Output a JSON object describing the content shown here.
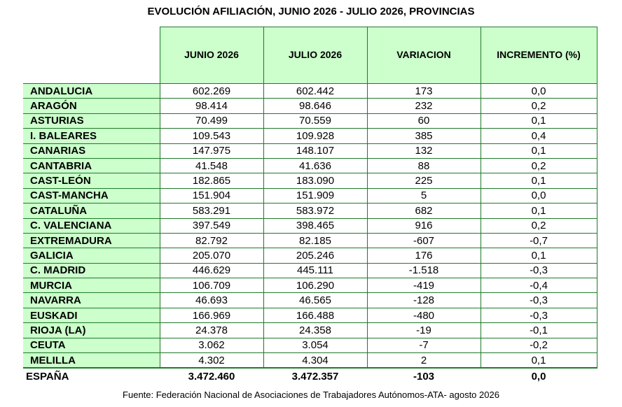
{
  "title": "EVOLUCIÓN AFILIACIÓN, JUNIO 2026 - JULIO 2026, PROVINCIAS",
  "headers": [
    "JUNIO 2026",
    "JULIO 2026",
    "VARIACION",
    "INCREMENTO (%)"
  ],
  "rows": [
    {
      "name": "ANDALUCIA",
      "junio": "602.269",
      "julio": "602.442",
      "variacion": "173",
      "incremento": "0,0"
    },
    {
      "name": "ARAGÓN",
      "junio": "98.414",
      "julio": "98.646",
      "variacion": "232",
      "incremento": "0,2"
    },
    {
      "name": "ASTURIAS",
      "junio": "70.499",
      "julio": "70.559",
      "variacion": "60",
      "incremento": "0,1"
    },
    {
      "name": "I. BALEARES",
      "junio": "109.543",
      "julio": "109.928",
      "variacion": "385",
      "incremento": "0,4"
    },
    {
      "name": "CANARIAS",
      "junio": "147.975",
      "julio": "148.107",
      "variacion": "132",
      "incremento": "0,1"
    },
    {
      "name": "CANTABRIA",
      "junio": "41.548",
      "julio": "41.636",
      "variacion": "88",
      "incremento": "0,2"
    },
    {
      "name": "CAST-LEÓN",
      "junio": "182.865",
      "julio": "183.090",
      "variacion": "225",
      "incremento": "0,1"
    },
    {
      "name": "CAST-MANCHA",
      "junio": "151.904",
      "julio": "151.909",
      "variacion": "5",
      "incremento": "0,0"
    },
    {
      "name": "CATALUÑA",
      "junio": "583.291",
      "julio": "583.972",
      "variacion": "682",
      "incremento": "0,1"
    },
    {
      "name": "C. VALENCIANA",
      "junio": "397.549",
      "julio": "398.465",
      "variacion": "916",
      "incremento": "0,2"
    },
    {
      "name": "EXTREMADURA",
      "junio": "82.792",
      "julio": "82.185",
      "variacion": "-607",
      "incremento": "-0,7"
    },
    {
      "name": "GALICIA",
      "junio": "205.070",
      "julio": "205.246",
      "variacion": "176",
      "incremento": "0,1"
    },
    {
      "name": "C. MADRID",
      "junio": "446.629",
      "julio": "445.111",
      "variacion": "-1.518",
      "incremento": "-0,3"
    },
    {
      "name": "MURCIA",
      "junio": "106.709",
      "julio": "106.290",
      "variacion": "-419",
      "incremento": "-0,4"
    },
    {
      "name": "NAVARRA",
      "junio": "46.693",
      "julio": "46.565",
      "variacion": "-128",
      "incremento": "-0,3"
    },
    {
      "name": "EUSKADI",
      "junio": "166.969",
      "julio": "166.488",
      "variacion": "-480",
      "incremento": "-0,3"
    },
    {
      "name": "RIOJA (LA)",
      "junio": "24.378",
      "julio": "24.358",
      "variacion": "-19",
      "incremento": "-0,1"
    },
    {
      "name": "CEUTA",
      "junio": "3.062",
      "julio": "3.054",
      "variacion": "-7",
      "incremento": "-0,2"
    },
    {
      "name": "MELILLA",
      "junio": "4.302",
      "julio": "4.304",
      "variacion": "2",
      "incremento": "0,1"
    }
  ],
  "total": {
    "name": "ESPAÑA",
    "junio": "3.472.460",
    "julio": "3.472.357",
    "variacion": "-103",
    "incremento": "0,0"
  },
  "source": "Fuente: Federación Nacional de Asociaciones de Trabajadores Autónomos-ATA- agosto 2026",
  "colors": {
    "header_bg": "#ccffcc",
    "border": "#1e7a2a"
  }
}
